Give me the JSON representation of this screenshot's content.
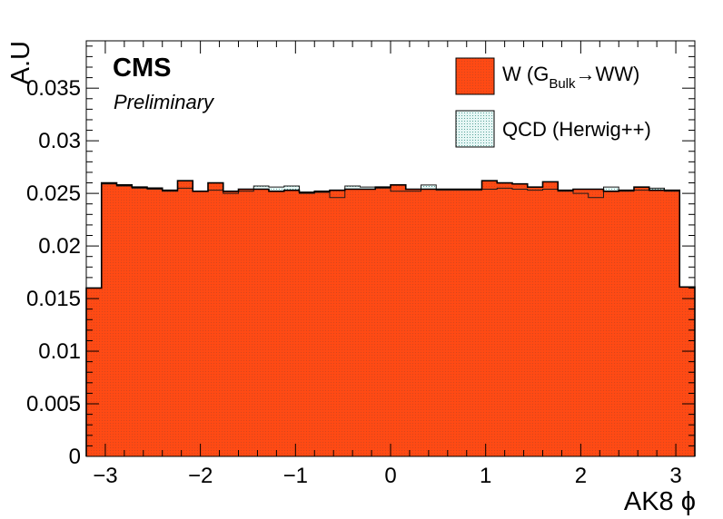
{
  "chart_data": {
    "type": "bar",
    "subtype": "overlaid-histogram",
    "xlabel": "AK8 ϕ",
    "ylabel": "A.U",
    "xlim": [
      -3.2,
      3.2
    ],
    "ylim": [
      0,
      0.0395
    ],
    "x_ticks": [
      -3,
      -2,
      -1,
      0,
      1,
      2,
      3
    ],
    "x_tick_labels": [
      "−3",
      "−2",
      "−1",
      "0",
      "1",
      "2",
      "3"
    ],
    "y_ticks": [
      0,
      0.005,
      0.01,
      0.015,
      0.02,
      0.025,
      0.03,
      0.035
    ],
    "y_tick_labels": [
      "0",
      "0.005",
      "0.01",
      "0.015",
      "0.02",
      "0.025",
      "0.03",
      "0.035"
    ],
    "bin_edges": [
      -3.2,
      -3.04,
      -2.88,
      -2.72,
      -2.56,
      -2.4,
      -2.24,
      -2.08,
      -1.92,
      -1.76,
      -1.6,
      -1.44,
      -1.28,
      -1.12,
      -0.96,
      -0.8,
      -0.64,
      -0.48,
      -0.32,
      -0.16,
      0.0,
      0.16,
      0.32,
      0.48,
      0.64,
      0.8,
      0.96,
      1.12,
      1.28,
      1.44,
      1.6,
      1.76,
      1.92,
      2.08,
      2.24,
      2.4,
      2.56,
      2.72,
      2.88,
      3.04,
      3.2
    ],
    "grid": false,
    "legend_position": "top-right",
    "series": [
      {
        "name": "W (G_Bulk→WW)",
        "color": "#ff3d0f",
        "style": "filled",
        "values": [
          0.016,
          0.026,
          0.0258,
          0.0256,
          0.0255,
          0.0253,
          0.0262,
          0.0252,
          0.026,
          0.0252,
          0.0254,
          0.0254,
          0.0252,
          0.0253,
          0.0251,
          0.0252,
          0.0253,
          0.0254,
          0.0254,
          0.0256,
          0.0258,
          0.0254,
          0.0254,
          0.0254,
          0.0254,
          0.0254,
          0.0262,
          0.026,
          0.0259,
          0.0256,
          0.0261,
          0.0253,
          0.0254,
          0.0254,
          0.0252,
          0.0253,
          0.0256,
          0.0253,
          0.0253,
          0.0161
        ]
      },
      {
        "name": "QCD (Herwig++)",
        "color": "#e0f4f4",
        "style": "hatched",
        "values": [
          0.016,
          0.0259,
          0.0257,
          0.0255,
          0.0254,
          0.0252,
          0.0255,
          0.0252,
          0.0253,
          0.025,
          0.0252,
          0.0257,
          0.0256,
          0.0257,
          0.025,
          0.0251,
          0.0246,
          0.0257,
          0.0256,
          0.0255,
          0.0252,
          0.0252,
          0.0258,
          0.0253,
          0.0253,
          0.0253,
          0.0254,
          0.0255,
          0.0254,
          0.0253,
          0.0254,
          0.0252,
          0.025,
          0.0246,
          0.0256,
          0.0252,
          0.0253,
          0.0255,
          0.0252,
          0.0161
        ]
      }
    ]
  },
  "annotations": {
    "experiment": "CMS",
    "status": "Preliminary"
  },
  "legend": {
    "entries": [
      {
        "label_main": "W (G",
        "label_sub": "Bulk",
        "label_tail": "→WW)",
        "swatch": "filled"
      },
      {
        "label_main": "QCD (Herwig++)",
        "label_sub": "",
        "label_tail": "",
        "swatch": "hatched"
      }
    ]
  }
}
